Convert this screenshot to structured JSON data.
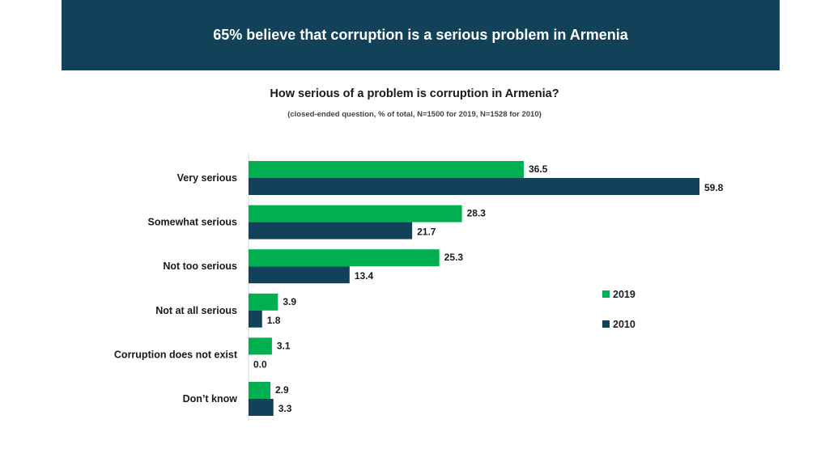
{
  "header": {
    "title": "65% believe that corruption is a serious problem in Armenia"
  },
  "chart_data": {
    "type": "bar",
    "orientation": "horizontal",
    "title": "How serious of a problem is corruption in Armenia?",
    "subtitle": "(closed-ended question, % of total, N=1500 for 2019, N=1528 for 2010)",
    "categories": [
      "Very serious",
      "Somewhat serious",
      "Not too serious",
      "Not at all serious",
      "Corruption does not exist",
      "Don’t know"
    ],
    "series": [
      {
        "name": "2019",
        "color": "#00b050",
        "values": [
          36.5,
          28.3,
          25.3,
          3.9,
          3.1,
          2.9
        ],
        "labels": [
          "36.5",
          "28.3",
          "25.3",
          "3.9",
          "3.1",
          "2.9"
        ]
      },
      {
        "name": "2010",
        "color": "#12415a",
        "values": [
          59.8,
          21.7,
          13.4,
          1.8,
          0.0,
          3.3
        ],
        "labels": [
          "59.8",
          "21.7",
          "13.4",
          "1.8",
          "0.0",
          "3.3"
        ]
      }
    ],
    "xlim": [
      0,
      60
    ],
    "grid": false,
    "legend_position": "right"
  }
}
